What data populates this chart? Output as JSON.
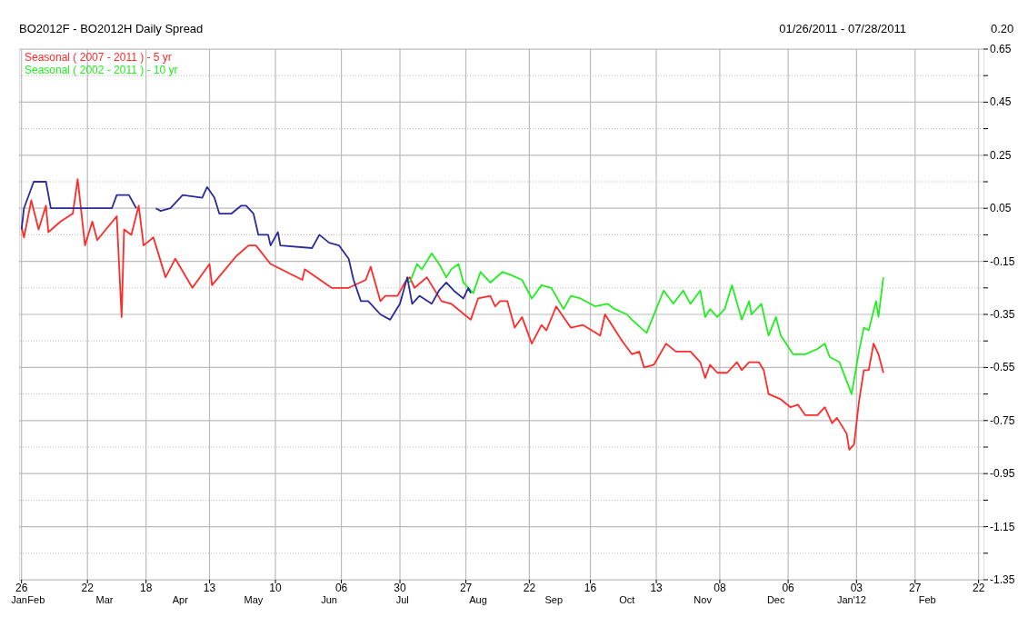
{
  "chart_data": {
    "type": "line",
    "title": "BO2012F - BO2012H Daily Spread",
    "subtitle": "01/26/2011 - 07/28/2011",
    "annotations": [
      "0.20"
    ],
    "legend": "top left",
    "grid": true,
    "line_style": "solid",
    "xlim": [
      "2011-01-25",
      "2012-02-24"
    ],
    "ylim": [
      -1.35,
      0.65
    ],
    "xticks": [
      {
        "value": "2011-01-26",
        "label": "26"
      },
      {
        "value": "2011-02-22",
        "label": "22"
      },
      {
        "value": "2011-03-18",
        "label": "18"
      },
      {
        "value": "2011-04-13",
        "label": "13"
      },
      {
        "value": "2011-05-10",
        "label": "10"
      },
      {
        "value": "2011-06-06",
        "label": "06"
      },
      {
        "value": "2011-06-30",
        "label": "30"
      },
      {
        "value": "2011-07-27",
        "label": "27"
      },
      {
        "value": "2011-08-22",
        "label": "22"
      },
      {
        "value": "2011-09-16",
        "label": "16"
      },
      {
        "value": "2011-10-13",
        "label": "13"
      },
      {
        "value": "2011-11-08",
        "label": "08"
      },
      {
        "value": "2011-12-06",
        "label": "06"
      },
      {
        "value": "2012-01-03",
        "label": "03"
      },
      {
        "value": "2012-01-27",
        "label": "27"
      },
      {
        "value": "2012-02-22",
        "label": "22"
      }
    ],
    "x2lim": [
      "2011-01-25",
      "2012-02-24"
    ],
    "x2ticks": [
      {
        "value": "2011-01-25",
        "label": "Jan"
      },
      {
        "value": "2011-02-01",
        "label": "Feb"
      },
      {
        "value": "2011-03-01",
        "label": "Mar"
      },
      {
        "value": "2011-04-01",
        "label": "Apr"
      },
      {
        "value": "2011-05-01",
        "label": "May"
      },
      {
        "value": "2011-06-01",
        "label": "Jun"
      },
      {
        "value": "2011-07-01",
        "label": "Jul"
      },
      {
        "value": "2011-08-01",
        "label": "Aug"
      },
      {
        "value": "2011-09-01",
        "label": "Sep"
      },
      {
        "value": "2011-10-01",
        "label": "Oct"
      },
      {
        "value": "2011-11-01",
        "label": "Nov"
      },
      {
        "value": "2011-12-01",
        "label": "Dec"
      },
      {
        "value": "2012-01-01",
        "label": "Jan'12"
      },
      {
        "value": "2012-02-01",
        "label": "Feb"
      }
    ],
    "yticks": [
      0.65,
      0.45,
      0.25,
      0.05,
      -0.15,
      -0.35,
      -0.55,
      -0.75,
      -0.95,
      -1.15,
      -1.35,
      {
        "value": 0.55,
        "label": null
      },
      {
        "value": 0.35,
        "label": null
      },
      {
        "value": 0.15,
        "label": null
      },
      {
        "value": -0.05,
        "label": null
      },
      {
        "value": -0.25,
        "label": null
      },
      {
        "value": -0.45,
        "label": null
      },
      {
        "value": -0.65,
        "label": null
      },
      {
        "value": -0.85,
        "label": null
      },
      {
        "value": -1.05,
        "label": null
      },
      {
        "value": -1.25,
        "label": null
      }
    ],
    "series": [
      {
        "name": "Seasonal ( 2007 - 2011 ) - 5 yr",
        "color": "#ff2a2a",
        "x": [
          "2011-01-26",
          "2011-01-27",
          "2011-01-30",
          "2011-02-02",
          "2011-02-05",
          "2011-02-06",
          "2011-02-11",
          "2011-02-16",
          "2011-02-18",
          "2011-02-21",
          "2011-02-24",
          "2011-02-26",
          "2011-03-06",
          "2011-03-08",
          "2011-03-09",
          "2011-03-12",
          "2011-03-15",
          "2011-03-17",
          "2011-03-21",
          "2011-03-26",
          "2011-03-30",
          "2011-04-06",
          "2011-04-13",
          "2011-04-14",
          "2011-04-24",
          "2011-04-29",
          "2011-05-02",
          "2011-05-08",
          "2011-05-21",
          "2011-05-22",
          "2011-06-02",
          "2011-06-09",
          "2011-06-16",
          "2011-06-18",
          "2011-06-22",
          "2011-06-24",
          "2011-06-29",
          "2011-07-02",
          "2011-07-04",
          "2011-07-06",
          "2011-07-11",
          "2011-07-17",
          "2011-07-21",
          "2011-07-29",
          "2011-08-01",
          "2011-08-06",
          "2011-08-08",
          "2011-08-10",
          "2011-08-13",
          "2011-08-16",
          "2011-08-19",
          "2011-08-23",
          "2011-08-27",
          "2011-08-29",
          "2011-09-02",
          "2011-09-05",
          "2011-09-08",
          "2011-09-13",
          "2011-09-20",
          "2011-09-22",
          "2011-09-29",
          "2011-10-03",
          "2011-10-06",
          "2011-10-08",
          "2011-10-12",
          "2011-10-17",
          "2011-10-21",
          "2011-10-27",
          "2011-10-31",
          "2011-11-02",
          "2011-11-04",
          "2011-11-07",
          "2011-11-11",
          "2011-11-15",
          "2011-11-17",
          "2011-11-20",
          "2011-11-24",
          "2011-11-26",
          "2011-11-28",
          "2011-12-03",
          "2011-12-07",
          "2011-12-10",
          "2011-12-13",
          "2011-12-18",
          "2011-12-21",
          "2011-12-24",
          "2011-12-26",
          "2011-12-30",
          "2011-12-31",
          "2012-01-02",
          "2012-01-04",
          "2012-01-06",
          "2012-01-08",
          "2012-01-10",
          "2012-01-12",
          "2012-01-14"
        ],
        "values": [
          -0.02,
          -0.06,
          0.08,
          -0.03,
          0.06,
          -0.04,
          0.0,
          0.03,
          0.16,
          -0.09,
          0.0,
          -0.07,
          0.02,
          -0.36,
          -0.03,
          -0.05,
          0.06,
          -0.09,
          -0.06,
          -0.21,
          -0.14,
          -0.25,
          -0.16,
          -0.24,
          -0.13,
          -0.09,
          -0.09,
          -0.16,
          -0.22,
          -0.18,
          -0.25,
          -0.25,
          -0.22,
          -0.17,
          -0.3,
          -0.28,
          -0.28,
          -0.23,
          -0.21,
          -0.25,
          -0.21,
          -0.3,
          -0.31,
          -0.37,
          -0.29,
          -0.28,
          -0.32,
          -0.3,
          -0.3,
          -0.4,
          -0.36,
          -0.46,
          -0.39,
          -0.41,
          -0.32,
          -0.36,
          -0.4,
          -0.39,
          -0.43,
          -0.35,
          -0.45,
          -0.5,
          -0.49,
          -0.55,
          -0.54,
          -0.46,
          -0.49,
          -0.49,
          -0.53,
          -0.59,
          -0.54,
          -0.57,
          -0.57,
          -0.53,
          -0.56,
          -0.53,
          -0.53,
          -0.56,
          -0.65,
          -0.67,
          -0.7,
          -0.69,
          -0.73,
          -0.73,
          -0.7,
          -0.76,
          -0.74,
          -0.8,
          -0.86,
          -0.84,
          -0.68,
          -0.56,
          -0.56,
          -0.46,
          -0.5,
          -0.57
        ]
      },
      {
        "name": "Seasonal ( 2002 - 2011 ) - 10 yr",
        "color": "#22ee22",
        "x": [
          "2011-07-04",
          "2011-07-07",
          "2011-07-09",
          "2011-07-13",
          "2011-07-16",
          "2011-07-19",
          "2011-07-21",
          "2011-07-24",
          "2011-07-26",
          "2011-07-30",
          "2011-08-02",
          "2011-08-04",
          "2011-08-06",
          "2011-08-11",
          "2011-08-14",
          "2011-08-19",
          "2011-08-23",
          "2011-08-27",
          "2011-08-31",
          "2011-09-05",
          "2011-09-08",
          "2011-09-12",
          "2011-09-18",
          "2011-09-23",
          "2011-09-26",
          "2011-10-01",
          "2011-10-03",
          "2011-10-09",
          "2011-10-16",
          "2011-10-20",
          "2011-10-24",
          "2011-10-27",
          "2011-10-31",
          "2011-11-02",
          "2011-11-04",
          "2011-11-07",
          "2011-11-10",
          "2011-11-13",
          "2011-11-17",
          "2011-11-20",
          "2011-11-21",
          "2011-11-25",
          "2011-11-28",
          "2011-12-01",
          "2011-12-03",
          "2011-12-08",
          "2011-12-13",
          "2011-12-18",
          "2011-12-21",
          "2011-12-23",
          "2011-12-27",
          "2012-01-01",
          "2012-01-04",
          "2012-01-06",
          "2012-01-08",
          "2012-01-11",
          "2012-01-12",
          "2012-01-14"
        ],
        "values": [
          -0.23,
          -0.16,
          -0.18,
          -0.12,
          -0.16,
          -0.21,
          -0.18,
          -0.16,
          -0.23,
          -0.27,
          -0.19,
          -0.21,
          -0.23,
          -0.19,
          -0.2,
          -0.22,
          -0.29,
          -0.24,
          -0.25,
          -0.33,
          -0.28,
          -0.29,
          -0.32,
          -0.31,
          -0.33,
          -0.35,
          -0.37,
          -0.42,
          -0.26,
          -0.31,
          -0.26,
          -0.31,
          -0.26,
          -0.36,
          -0.33,
          -0.36,
          -0.33,
          -0.24,
          -0.37,
          -0.3,
          -0.35,
          -0.31,
          -0.43,
          -0.36,
          -0.43,
          -0.5,
          -0.5,
          -0.48,
          -0.46,
          -0.51,
          -0.53,
          -0.65,
          -0.49,
          -0.4,
          -0.41,
          -0.3,
          -0.36,
          -0.21
        ]
      },
      {
        "color": "#2b2b99",
        "x": [
          "2011-01-26",
          "2011-01-27",
          "2011-01-31",
          "2011-02-05",
          "2011-02-07",
          "2011-03-04",
          "2011-03-06",
          "2011-03-11",
          "2011-03-14",
          "2011-03-18",
          "2011-03-22",
          "2011-03-24",
          "2011-03-28",
          "2011-04-02",
          "2011-04-10",
          "2011-04-12",
          "2011-04-15",
          "2011-04-17",
          "2011-04-22",
          "2011-04-26",
          "2011-04-28",
          "2011-05-01",
          "2011-05-03",
          "2011-05-07",
          "2011-05-08",
          "2011-05-11",
          "2011-05-12",
          "2011-05-25",
          "2011-05-28",
          "2011-06-01",
          "2011-06-05",
          "2011-06-09",
          "2011-06-11",
          "2011-06-14",
          "2011-06-17",
          "2011-06-22",
          "2011-06-26",
          "2011-06-30",
          "2011-07-03",
          "2011-07-05",
          "2011-07-08",
          "2011-07-13",
          "2011-07-16",
          "2011-07-19",
          "2011-07-22",
          "2011-07-26",
          "2011-07-28",
          "2011-07-29"
        ],
        "values": [
          -0.03,
          0.05,
          0.15,
          0.15,
          0.05,
          0.05,
          0.1,
          0.1,
          0.05,
          null,
          0.05,
          0.04,
          0.05,
          0.1,
          0.09,
          0.13,
          0.09,
          0.03,
          0.03,
          0.06,
          0.06,
          0.03,
          -0.05,
          -0.05,
          -0.09,
          -0.04,
          -0.09,
          -0.1,
          -0.05,
          -0.08,
          -0.09,
          -0.14,
          -0.22,
          -0.3,
          -0.3,
          -0.35,
          -0.37,
          -0.31,
          -0.21,
          -0.31,
          -0.28,
          -0.31,
          -0.26,
          -0.23,
          -0.26,
          -0.29,
          -0.25,
          -0.27
        ]
      }
    ]
  }
}
